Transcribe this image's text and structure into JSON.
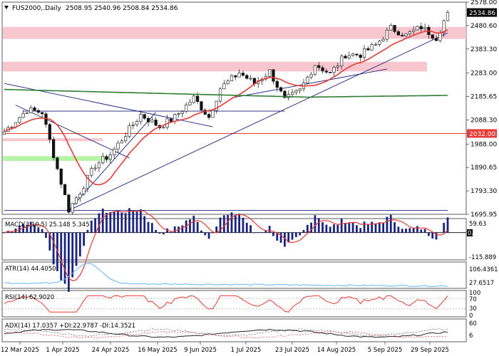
{
  "header": {
    "symbol": "FUS2000,.Daily",
    "ohlc": "2508.95 2540.96 2508.84 2534.86"
  },
  "colors": {
    "bull": "#1a237e",
    "ma_fast": "#e53935",
    "ma_slow": "#2e7d32",
    "resistance_zone": "#f7c6cf",
    "support_zone": "#b6f5a8",
    "trendline": "#1a237e",
    "level": "#e53935",
    "macd_signal": "#e53935",
    "atr": "#64b5f6",
    "rsi": "#e53935",
    "adx": "#222222"
  },
  "chart_data": {
    "type": "candlestick",
    "x_tick_labels": [
      "12 Mar 2025",
      "1 Apr 2025",
      "24 Apr 2025",
      "16 May 2025",
      "9 Jun 2025",
      "1 Jul 2025",
      "23 Jul 2025",
      "14 Aug 2025",
      "5 Sep 2025",
      "29 Sep 2025"
    ],
    "y_ticks": [
      "2578.00",
      "2480.60",
      "2383.30",
      "2283.00",
      "2185.65",
      "2088.30",
      "1988.00",
      "1890.65",
      "1793.30",
      "1695.95"
    ],
    "ylim": [
      1695.95,
      2578.0
    ],
    "last_price_label": "2534.86",
    "level_label": "2032.00",
    "level_value": 2032.0,
    "resistance_zone": [
      2425,
      2475
    ],
    "upper_zone": [
      2290,
      2330
    ],
    "mid_zone": [
      2000,
      2012
    ],
    "support_zone": [
      1918,
      1938
    ],
    "anchors": [
      [
        0,
        2040
      ],
      [
        6,
        2130
      ],
      [
        10,
        2120
      ],
      [
        14,
        1885
      ],
      [
        17,
        1715
      ],
      [
        20,
        1790
      ],
      [
        24,
        1900
      ],
      [
        28,
        1945
      ],
      [
        33,
        2050
      ],
      [
        36,
        2110
      ],
      [
        41,
        2060
      ],
      [
        45,
        2100
      ],
      [
        50,
        2180
      ],
      [
        54,
        2100
      ],
      [
        57,
        2220
      ],
      [
        62,
        2285
      ],
      [
        66,
        2240
      ],
      [
        70,
        2290
      ],
      [
        74,
        2170
      ],
      [
        78,
        2210
      ],
      [
        82,
        2320
      ],
      [
        86,
        2280
      ],
      [
        90,
        2360
      ],
      [
        94,
        2360
      ],
      [
        98,
        2400
      ],
      [
        102,
        2470
      ],
      [
        106,
        2440
      ],
      [
        110,
        2475
      ],
      [
        114,
        2430
      ],
      [
        117,
        2535
      ]
    ],
    "total_bars": 118,
    "indicators": {
      "macd": {
        "label": "MACD(3,10,5) 25.148 5.345",
        "ticks": [
          "59.63",
          "0.00",
          "-115.889"
        ],
        "range": [
          -115.889,
          59.63
        ]
      },
      "atr": {
        "label": "ATR(14) 44.4050",
        "ticks": [
          "106.4361",
          "27.6517"
        ],
        "range": [
          27.6517,
          106.4361
        ]
      },
      "rsi": {
        "label": "RSI(14) 62.9020",
        "ticks": [
          "100",
          "70",
          "30",
          "0"
        ],
        "range": [
          0,
          100
        ]
      },
      "adx": {
        "label": "ADX(14) 17.0357 +DI:22.9787 -DI:14.3521",
        "ticks": [
          "60",
          "6"
        ],
        "range": [
          0,
          60
        ]
      }
    }
  }
}
